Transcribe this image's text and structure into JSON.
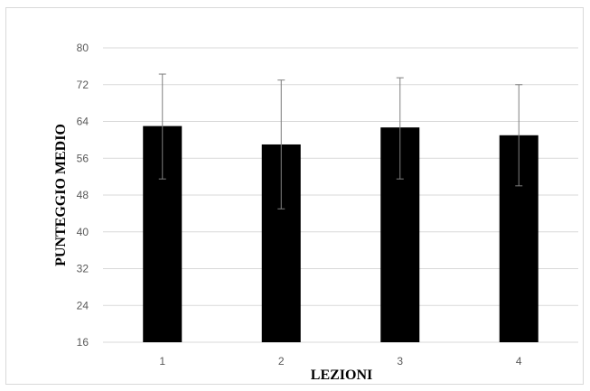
{
  "chart_data": {
    "type": "bar",
    "title": "",
    "xlabel": "LEZIONI",
    "ylabel": "PUNTEGGIO MEDIO",
    "categories": [
      "1",
      "2",
      "3",
      "4"
    ],
    "series": [
      {
        "values": [
          63,
          59,
          62.7,
          61
        ],
        "error_low": [
          51.5,
          45,
          51.5,
          50
        ],
        "error_high": [
          74.3,
          73,
          73.5,
          72
        ]
      }
    ],
    "ylim": [
      16,
      80
    ],
    "yticks": [
      "16",
      "24",
      "32",
      "40",
      "48",
      "56",
      "64",
      "72",
      "80"
    ],
    "grid": true,
    "bar_color": "#000000",
    "grid_color": "#d9d9d9",
    "error_bar_color": "#7f7f7f"
  }
}
